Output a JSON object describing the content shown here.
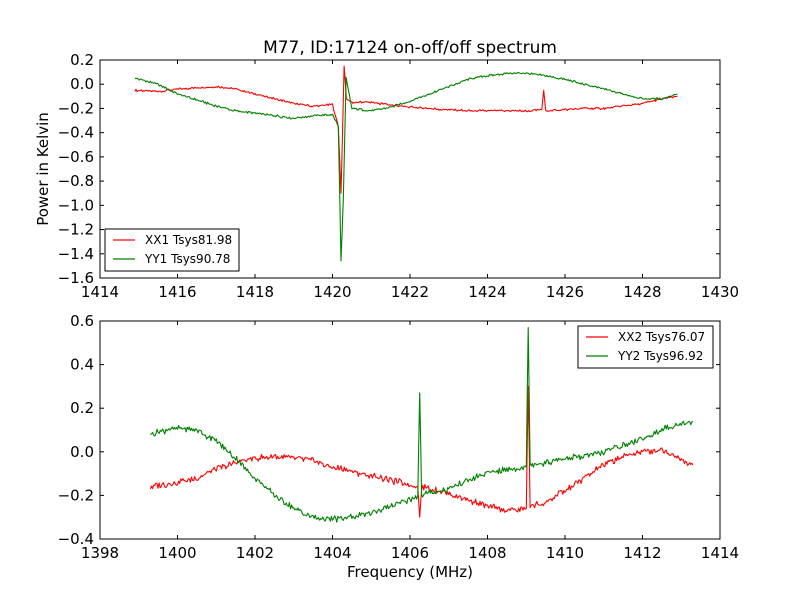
{
  "figure": {
    "title": "M77, ID:17124 on-off/off spectrum",
    "xlabel": "Frequency (MHz)",
    "ylabel": "Power in Kelvin"
  },
  "chart_data": [
    {
      "type": "line",
      "title": "M77, ID:17124 on-off/off spectrum",
      "xlabel": "",
      "ylabel": "Power in Kelvin",
      "xlim": [
        1414,
        1430
      ],
      "ylim": [
        -1.6,
        0.2
      ],
      "xticks": [
        1414,
        1416,
        1418,
        1420,
        1422,
        1424,
        1426,
        1428,
        1430
      ],
      "yticks": [
        -1.6,
        -1.4,
        -1.2,
        -1.0,
        -0.8,
        -0.6,
        -0.4,
        -0.2,
        0.0,
        0.2
      ],
      "grid": false,
      "legend_position": "bottom-left",
      "series": [
        {
          "name": "XX1 Tsys81.98",
          "color": "#ff0000",
          "x": [
            1414.9,
            1415.5,
            1416.0,
            1416.5,
            1417.0,
            1417.5,
            1418.0,
            1418.5,
            1419.0,
            1419.5,
            1420.0,
            1420.15,
            1420.22,
            1420.3,
            1420.36,
            1420.5,
            1421.0,
            1421.5,
            1422.0,
            1422.5,
            1423.0,
            1423.5,
            1424.0,
            1424.5,
            1425.0,
            1425.4,
            1425.45,
            1425.5,
            1426.0,
            1426.5,
            1427.0,
            1427.5,
            1428.0,
            1428.5,
            1428.9
          ],
          "y": [
            -0.05,
            -0.06,
            -0.04,
            -0.03,
            -0.02,
            -0.04,
            -0.08,
            -0.12,
            -0.16,
            -0.18,
            -0.17,
            -0.35,
            -0.9,
            0.15,
            -0.12,
            -0.15,
            -0.15,
            -0.17,
            -0.19,
            -0.2,
            -0.21,
            -0.22,
            -0.22,
            -0.22,
            -0.22,
            -0.21,
            -0.05,
            -0.22,
            -0.21,
            -0.2,
            -0.2,
            -0.18,
            -0.16,
            -0.12,
            -0.1
          ]
        },
        {
          "name": "YY1 Tsys90.78",
          "color": "#008000",
          "x": [
            1414.9,
            1415.5,
            1416.0,
            1416.5,
            1417.0,
            1417.5,
            1418.0,
            1418.5,
            1419.0,
            1419.5,
            1420.0,
            1420.15,
            1420.22,
            1420.28,
            1420.35,
            1420.5,
            1421.0,
            1421.5,
            1422.0,
            1422.5,
            1423.0,
            1423.5,
            1424.0,
            1424.5,
            1425.0,
            1425.5,
            1426.0,
            1426.5,
            1427.0,
            1427.5,
            1428.0,
            1428.5,
            1428.9
          ],
          "y": [
            0.05,
            0.0,
            -0.08,
            -0.13,
            -0.18,
            -0.22,
            -0.24,
            -0.26,
            -0.28,
            -0.26,
            -0.25,
            -0.35,
            -1.46,
            -0.95,
            0.05,
            -0.2,
            -0.22,
            -0.19,
            -0.14,
            -0.08,
            -0.02,
            0.04,
            0.07,
            0.09,
            0.09,
            0.07,
            0.04,
            0.0,
            -0.04,
            -0.08,
            -0.12,
            -0.12,
            -0.08
          ]
        }
      ]
    },
    {
      "type": "line",
      "title": "",
      "xlabel": "Frequency (MHz)",
      "ylabel": "",
      "xlim": [
        1398,
        1414
      ],
      "ylim": [
        -0.4,
        0.6
      ],
      "xticks": [
        1398,
        1400,
        1402,
        1404,
        1406,
        1408,
        1410,
        1412,
        1414
      ],
      "yticks": [
        -0.4,
        -0.2,
        0.0,
        0.2,
        0.4,
        0.6
      ],
      "grid": false,
      "legend_position": "top-right",
      "series": [
        {
          "name": "XX2 Tsys76.07",
          "color": "#ff0000",
          "x": [
            1399.3,
            1400.0,
            1400.5,
            1401.0,
            1401.5,
            1402.0,
            1402.5,
            1403.0,
            1403.5,
            1404.0,
            1404.5,
            1405.0,
            1405.5,
            1406.0,
            1406.2,
            1406.25,
            1406.3,
            1406.5,
            1407.0,
            1407.5,
            1408.0,
            1408.5,
            1409.0,
            1409.05,
            1409.1,
            1409.5,
            1410.0,
            1410.5,
            1411.0,
            1411.5,
            1412.0,
            1412.5,
            1413.0,
            1413.3
          ],
          "y": [
            -0.16,
            -0.14,
            -0.12,
            -0.08,
            -0.05,
            -0.03,
            -0.02,
            -0.03,
            -0.04,
            -0.07,
            -0.09,
            -0.11,
            -0.13,
            -0.15,
            -0.16,
            -0.3,
            -0.16,
            -0.17,
            -0.19,
            -0.22,
            -0.25,
            -0.27,
            -0.26,
            0.3,
            -0.25,
            -0.23,
            -0.18,
            -0.12,
            -0.06,
            -0.02,
            0.0,
            0.01,
            -0.03,
            -0.06
          ]
        },
        {
          "name": "YY2 Tsys96.92",
          "color": "#008000",
          "x": [
            1399.3,
            1399.7,
            1400.0,
            1400.5,
            1401.0,
            1401.5,
            1402.0,
            1402.5,
            1403.0,
            1403.5,
            1404.0,
            1404.5,
            1405.0,
            1405.5,
            1406.0,
            1406.2,
            1406.25,
            1406.3,
            1406.5,
            1407.0,
            1407.5,
            1408.0,
            1408.5,
            1409.0,
            1409.05,
            1409.1,
            1409.5,
            1410.0,
            1410.5,
            1411.0,
            1411.5,
            1412.0,
            1412.5,
            1413.0,
            1413.3
          ],
          "y": [
            0.08,
            0.1,
            0.11,
            0.1,
            0.05,
            -0.03,
            -0.12,
            -0.2,
            -0.26,
            -0.3,
            -0.31,
            -0.3,
            -0.28,
            -0.25,
            -0.22,
            -0.2,
            0.27,
            -0.2,
            -0.19,
            -0.17,
            -0.13,
            -0.1,
            -0.08,
            -0.07,
            0.57,
            -0.06,
            -0.05,
            -0.03,
            -0.02,
            0.0,
            0.03,
            0.06,
            0.1,
            0.13,
            0.14
          ]
        }
      ]
    }
  ]
}
